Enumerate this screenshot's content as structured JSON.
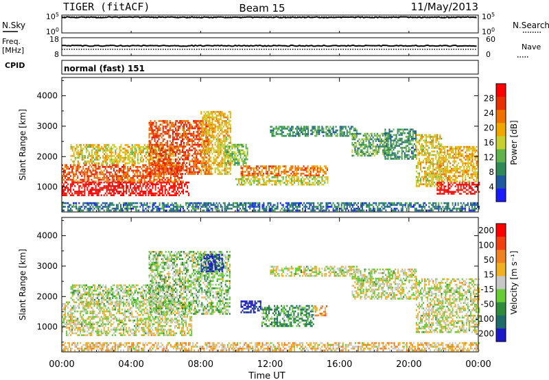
{
  "header": {
    "site": "TIGER (fitACF)",
    "beam": "Beam 15",
    "date": "11/May/2013"
  },
  "left_labels": {
    "nsky": "N.Sky",
    "freq_line1": "Freq.",
    "freq_line2": "[MHz]",
    "cpid": "CPID"
  },
  "right_labels": {
    "nsearch": "N.Search",
    "nave": "Nave"
  },
  "cpid_text": "normal (fast) 151",
  "chart_data": [
    {
      "type": "line",
      "panel": "noise",
      "left_ticks": [
        "10^5",
        "10^0"
      ],
      "right_ticks": [
        "10^5",
        "10^0"
      ],
      "series": [
        {
          "name": "N.Sky",
          "style": "solid",
          "level": 0.88
        },
        {
          "name": "N.Search",
          "style": "dotted",
          "level": 0.9
        }
      ]
    },
    {
      "type": "line",
      "panel": "frequency",
      "left_ticks": [
        "18",
        "8"
      ],
      "right_ticks": [
        "60",
        "0"
      ],
      "series": [
        {
          "name": "Freq.",
          "style": "solid",
          "level": 0.55
        },
        {
          "name": "Nave",
          "style": "dotted",
          "level": 0.35
        }
      ]
    },
    {
      "type": "heatmap",
      "panel": "power",
      "ylabel": "Slant Range [km]",
      "yticks": [
        1000,
        2000,
        3000,
        4000
      ],
      "ylim": [
        180,
        4600
      ],
      "xlim": [
        0,
        24
      ],
      "colorbar": {
        "label": "Power [dB]",
        "ticks": [
          "4",
          "8",
          "12",
          "16",
          "20",
          "24",
          "28"
        ],
        "colors": [
          "#1a1aff",
          "#1f5aa0",
          "#2e8b57",
          "#5fb34a",
          "#c8d030",
          "#f0a800",
          "#f07000",
          "#e83000",
          "#ff0000"
        ]
      },
      "echo_regions": [
        {
          "t0": 0.0,
          "t1": 7.3,
          "r0": 700,
          "r1": 1150,
          "level": 0.97
        },
        {
          "t0": 0.0,
          "t1": 7.0,
          "r0": 1150,
          "r1": 1750,
          "level": 0.78
        },
        {
          "t0": 0.5,
          "t1": 6.5,
          "r0": 1750,
          "r1": 2400,
          "level": 0.55
        },
        {
          "t0": 5.0,
          "t1": 8.5,
          "r0": 1400,
          "r1": 3200,
          "level": 0.8
        },
        {
          "t0": 8.0,
          "t1": 9.7,
          "r0": 1400,
          "r1": 3500,
          "level": 0.58
        },
        {
          "t0": 9.3,
          "t1": 10.7,
          "r0": 1700,
          "r1": 2400,
          "level": 0.42
        },
        {
          "t0": 10.3,
          "t1": 15.3,
          "r0": 1350,
          "r1": 1700,
          "level": 0.72
        },
        {
          "t0": 10.0,
          "t1": 15.3,
          "r0": 1050,
          "r1": 1350,
          "level": 0.5
        },
        {
          "t0": 12.0,
          "t1": 17.0,
          "r0": 2650,
          "r1": 3000,
          "level": 0.3
        },
        {
          "t0": 16.7,
          "t1": 18.8,
          "r0": 2000,
          "r1": 2750,
          "level": 0.35
        },
        {
          "t0": 18.6,
          "t1": 20.4,
          "r0": 1900,
          "r1": 2900,
          "level": 0.3
        },
        {
          "t0": 20.4,
          "t1": 21.9,
          "r0": 1000,
          "r1": 2700,
          "level": 0.55
        },
        {
          "t0": 21.6,
          "t1": 24.0,
          "r0": 750,
          "r1": 1150,
          "level": 0.97
        },
        {
          "t0": 21.7,
          "t1": 24.0,
          "r0": 1150,
          "r1": 2300,
          "level": 0.6
        },
        {
          "t0": 0.0,
          "t1": 24.0,
          "r0": 200,
          "r1": 450,
          "level": 0.22
        }
      ]
    },
    {
      "type": "heatmap",
      "panel": "velocity",
      "ylabel": "Slant Range [km]",
      "yticks": [
        1000,
        2000,
        3000,
        4000
      ],
      "ylim": [
        180,
        4600
      ],
      "xlim": [
        0,
        24
      ],
      "xticks": [
        "00:00",
        "04:00",
        "08:00",
        "12:00",
        "16:00",
        "20:00",
        "00:00"
      ],
      "xlabel": "Time UT",
      "colorbar": {
        "label": "Velocity [m s⁻¹]",
        "ticks": [
          "200",
          "100",
          "50",
          "15",
          "-15",
          "-50",
          "-100",
          "-200"
        ],
        "colors": [
          "#1a1ac8",
          "#1f6b6b",
          "#2e8b3a",
          "#66cc33",
          "#c8c8c8",
          "#f0b020",
          "#f08020",
          "#f04010",
          "#ff0000"
        ]
      },
      "echo_regions": [
        {
          "t0": 0.0,
          "t1": 7.5,
          "r0": 700,
          "r1": 1800,
          "level": 0.5
        },
        {
          "t0": 0.5,
          "t1": 6.5,
          "r0": 1800,
          "r1": 2400,
          "level": 0.45
        },
        {
          "t0": 5.0,
          "t1": 9.7,
          "r0": 1400,
          "r1": 3500,
          "level": 0.42
        },
        {
          "t0": 8.0,
          "t1": 9.3,
          "r0": 2800,
          "r1": 3400,
          "level": 0.05
        },
        {
          "t0": 10.3,
          "t1": 11.5,
          "r0": 1450,
          "r1": 1850,
          "level": 0.02
        },
        {
          "t0": 11.5,
          "t1": 14.5,
          "r0": 1000,
          "r1": 1700,
          "level": 0.3
        },
        {
          "t0": 14.5,
          "t1": 15.3,
          "r0": 1350,
          "r1": 1700,
          "level": 0.65
        },
        {
          "t0": 12.0,
          "t1": 17.0,
          "r0": 2650,
          "r1": 3000,
          "level": 0.5
        },
        {
          "t0": 16.7,
          "t1": 20.4,
          "r0": 1900,
          "r1": 2900,
          "level": 0.5
        },
        {
          "t0": 20.4,
          "t1": 24.0,
          "r0": 800,
          "r1": 2600,
          "level": 0.5
        },
        {
          "t0": 0.0,
          "t1": 24.0,
          "r0": 200,
          "r1": 450,
          "level": 0.6
        }
      ]
    }
  ]
}
